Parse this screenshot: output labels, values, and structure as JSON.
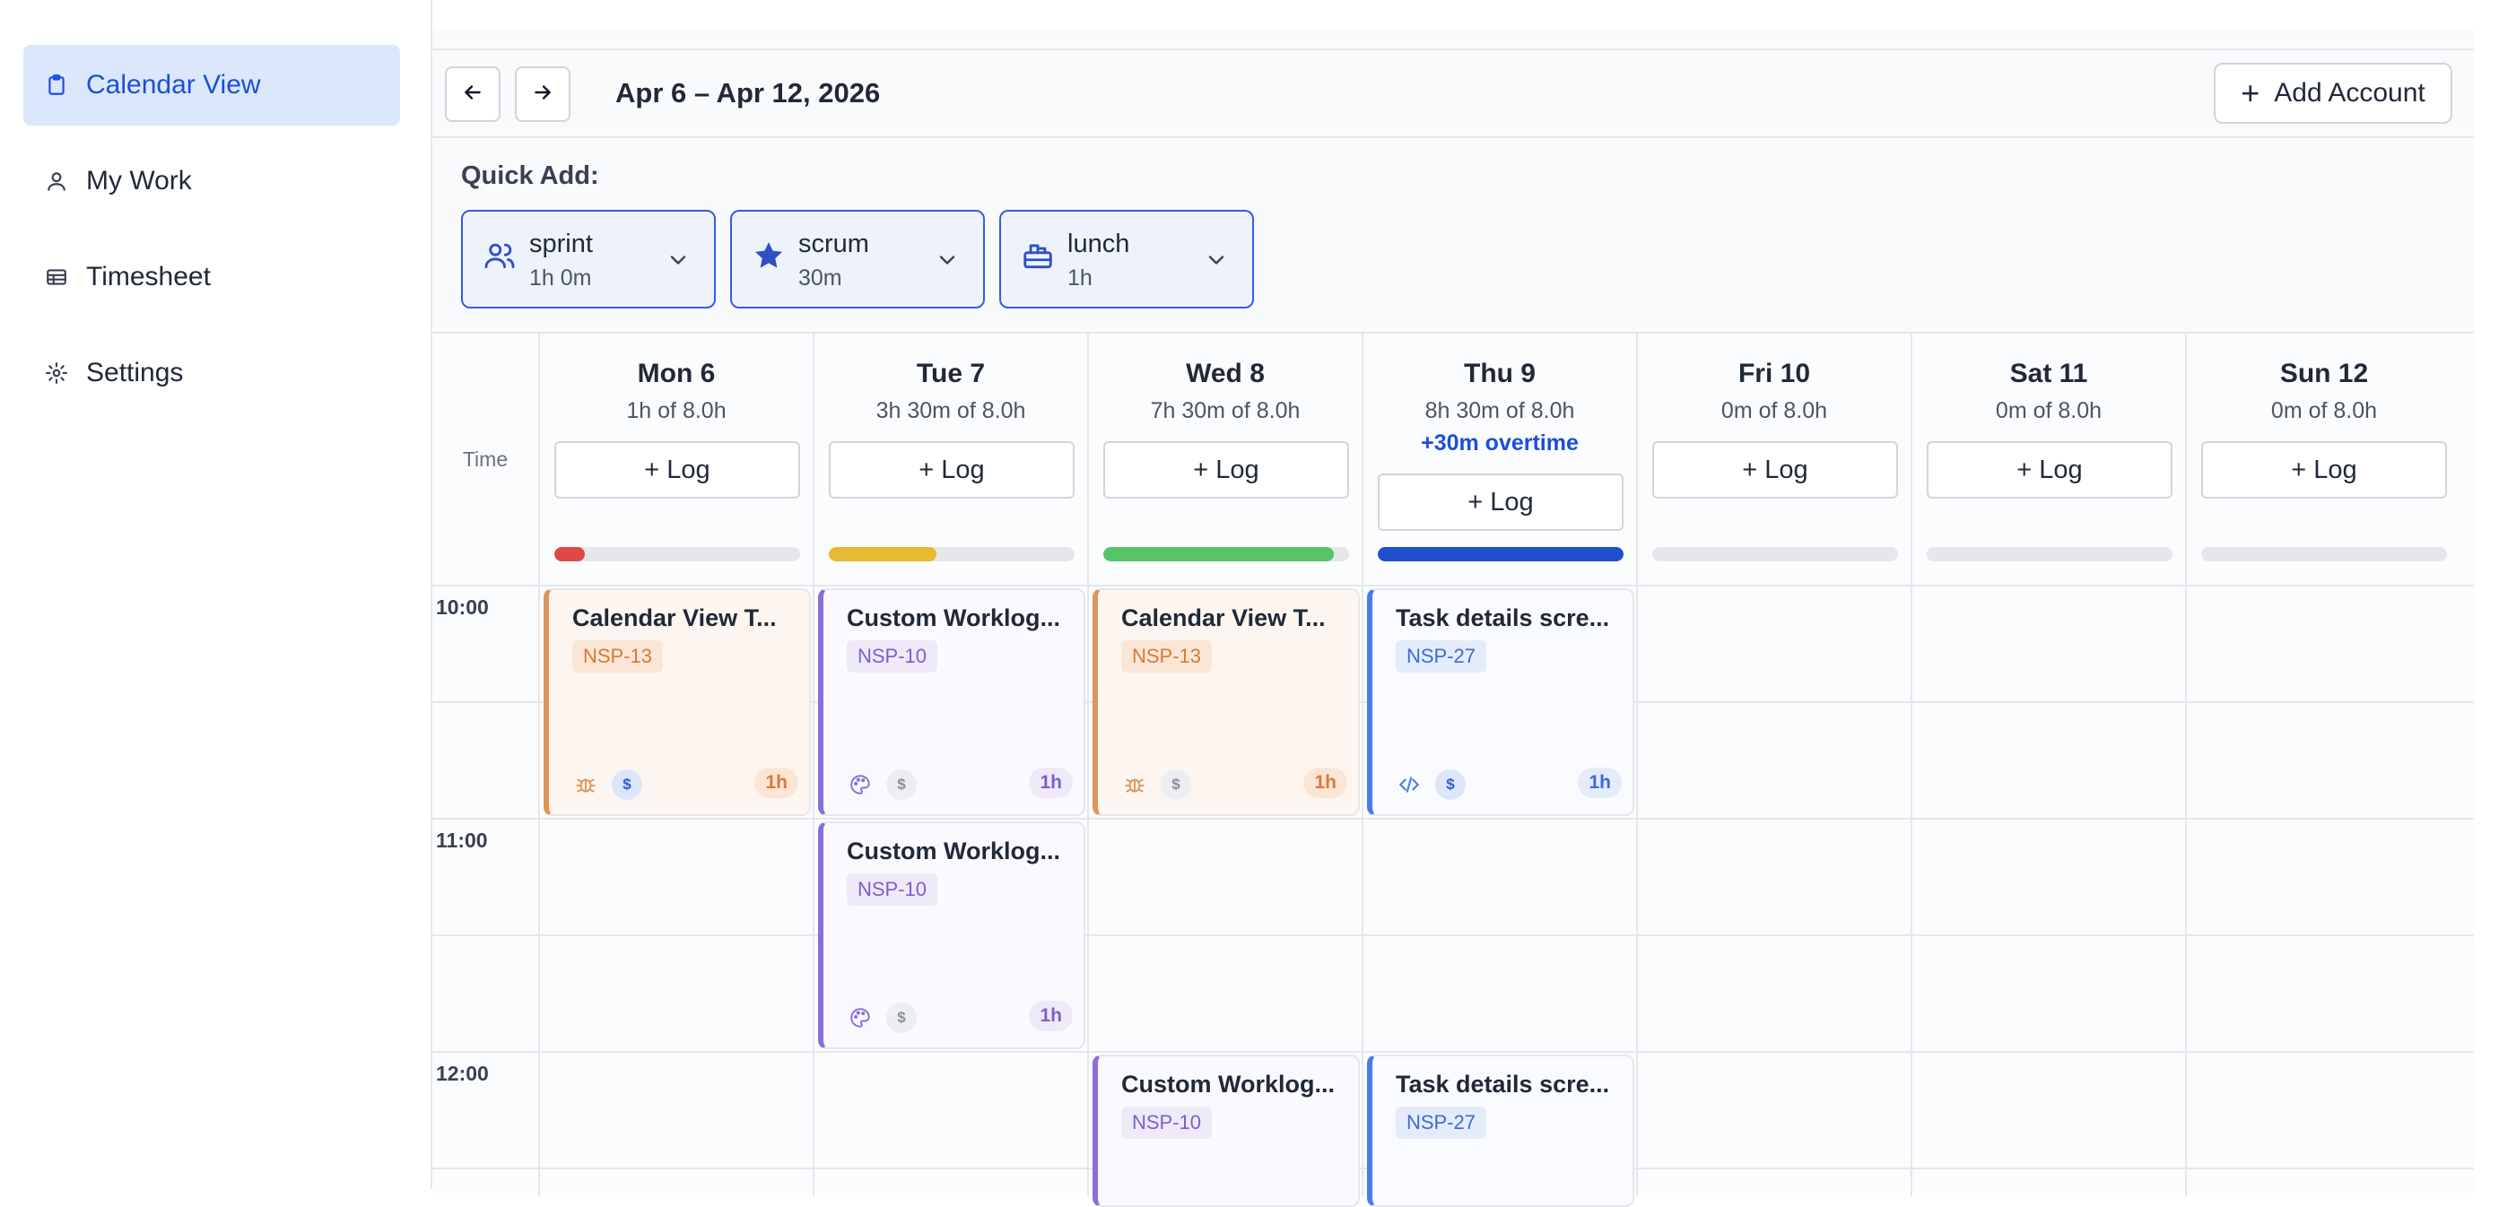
{
  "sidebar": {
    "items": [
      {
        "label": "Calendar View",
        "icon": "clipboard-icon",
        "active": true
      },
      {
        "label": "My Work",
        "icon": "user-icon",
        "active": false
      },
      {
        "label": "Timesheet",
        "icon": "table-icon",
        "active": false
      },
      {
        "label": "Settings",
        "icon": "gear-icon",
        "active": false
      }
    ]
  },
  "toolbar": {
    "prev_icon": "arrow-left-icon",
    "next_icon": "arrow-right-icon",
    "range": "Apr 6 – Apr 12, 2026",
    "add_account_label": "Add Account"
  },
  "quick_add": {
    "label": "Quick Add:",
    "items": [
      {
        "name": "sprint",
        "duration": "1h 0m",
        "icon": "users-icon"
      },
      {
        "name": "scrum",
        "duration": "30m",
        "icon": "star-icon"
      },
      {
        "name": "lunch",
        "duration": "1h",
        "icon": "lunch-icon"
      }
    ]
  },
  "grid": {
    "time_header": "Time",
    "days": [
      {
        "name": "Mon 6",
        "hours": "1h of 8.0h",
        "overtime": "",
        "log_label": "+ Log",
        "progress": 0.125,
        "bar_color": "#e04848"
      },
      {
        "name": "Tue 7",
        "hours": "3h 30m of 8.0h",
        "overtime": "",
        "log_label": "+ Log",
        "progress": 0.4375,
        "bar_color": "#e8b931"
      },
      {
        "name": "Wed 8",
        "hours": "7h 30m of 8.0h",
        "overtime": "",
        "log_label": "+ Log",
        "progress": 0.9375,
        "bar_color": "#58c46a"
      },
      {
        "name": "Thu 9",
        "hours": "8h 30m of 8.0h",
        "overtime": "+30m overtime",
        "log_label": "+ Log",
        "progress": 1.0,
        "bar_color": "#1f4fce"
      },
      {
        "name": "Fri 10",
        "hours": "0m of 8.0h",
        "overtime": "",
        "log_label": "+ Log",
        "progress": 0,
        "bar_color": "#e5e7eb"
      },
      {
        "name": "Sat 11",
        "hours": "0m of 8.0h",
        "overtime": "",
        "log_label": "+ Log",
        "progress": 0,
        "bar_color": "#e5e7eb"
      },
      {
        "name": "Sun 12",
        "hours": "0m of 8.0h",
        "overtime": "",
        "log_label": "+ Log",
        "progress": 0,
        "bar_color": "#e5e7eb"
      }
    ],
    "time_labels": [
      "10:00",
      "11:00",
      "12:00"
    ]
  },
  "events": [
    {
      "title": "Calendar View T...",
      "key": "NSP-13",
      "duration": "1h",
      "icon": "bug-icon",
      "billable": "$",
      "billable_active": true,
      "theme": "orange"
    },
    {
      "title": "Custom Worklog...",
      "key": "NSP-10",
      "duration": "1h",
      "icon": "palette-icon",
      "billable": "$",
      "billable_active": false,
      "theme": "purple"
    },
    {
      "title": "Calendar View T...",
      "key": "NSP-13",
      "duration": "1h",
      "icon": "bug-icon",
      "billable": "$",
      "billable_active": false,
      "theme": "orange"
    },
    {
      "title": "Task details scre...",
      "key": "NSP-27",
      "duration": "1h",
      "icon": "code-icon",
      "billable": "$",
      "billable_active": true,
      "theme": "blue"
    },
    {
      "title": "Custom Worklog...",
      "key": "NSP-10",
      "duration": "1h",
      "icon": "palette-icon",
      "billable": "$",
      "billable_active": false,
      "theme": "purple"
    },
    {
      "title": "Custom Worklog...",
      "key": "NSP-10",
      "duration": "",
      "icon": "",
      "billable": "",
      "billable_active": false,
      "theme": "purple"
    },
    {
      "title": "Task details scre...",
      "key": "NSP-27",
      "duration": "",
      "icon": "",
      "billable": "",
      "billable_active": false,
      "theme": "blue"
    }
  ],
  "themes": {
    "orange": {
      "accent": "#e0955a",
      "bg": "#fdf6f0",
      "key_bg": "#fbe6d6",
      "key_fg": "#d9783a"
    },
    "purple": {
      "accent": "#8a6fd8",
      "bg": "#faf9fd",
      "key_bg": "#eeeaf8",
      "key_fg": "#7a5fcf"
    },
    "blue": {
      "accent": "#4a7bec",
      "bg": "#f9fbfe",
      "key_bg": "#e4ecfb",
      "key_fg": "#3d6ad6"
    }
  }
}
